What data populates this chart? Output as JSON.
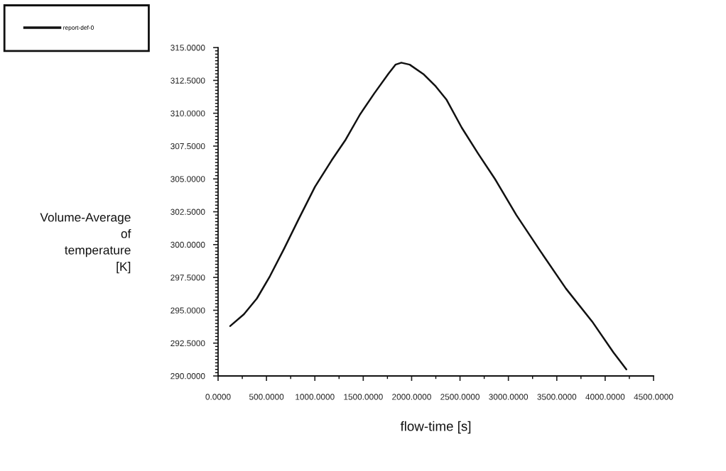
{
  "chart_data": {
    "type": "line",
    "xlabel": "flow-time [s]",
    "ylabel": "Volume-Average\nof\ntemperature\n[K]",
    "series": [
      {
        "name": "report-def-0",
        "color": "#111111",
        "x": [
          125,
          267,
          401,
          536,
          683,
          830,
          1001,
          1172,
          1319,
          1466,
          1613,
          1760,
          1833,
          1894,
          1980,
          2127,
          2249,
          2359,
          2518,
          2690,
          2861,
          3082,
          3326,
          3595,
          3865,
          4085,
          4219
        ],
        "values": [
          293.8,
          294.7,
          295.9,
          297.6,
          299.7,
          301.9,
          304.4,
          306.4,
          308.0,
          309.9,
          311.5,
          313.0,
          313.7,
          313.85,
          313.7,
          312.95,
          312.05,
          311.05,
          308.9,
          306.9,
          305.0,
          302.25,
          299.55,
          296.65,
          294.15,
          291.8,
          290.5
        ]
      }
    ],
    "xlim": [
      0,
      4500
    ],
    "ylim": [
      290,
      315
    ],
    "xticks": [
      {
        "value": 0,
        "label": "0.0000"
      },
      {
        "value": 500,
        "label": "500.0000"
      },
      {
        "value": 1000,
        "label": "1000.0000"
      },
      {
        "value": 1500,
        "label": "1500.0000"
      },
      {
        "value": 2000,
        "label": "2000.0000"
      },
      {
        "value": 2500,
        "label": "2500.0000"
      },
      {
        "value": 3000,
        "label": "3000.0000"
      },
      {
        "value": 3500,
        "label": "3500.0000"
      },
      {
        "value": 4000,
        "label": "4000.0000"
      },
      {
        "value": 4500,
        "label": "4500.0000"
      }
    ],
    "yticks": [
      {
        "value": 290,
        "label": "290.0000"
      },
      {
        "value": 292.5,
        "label": "292.5000"
      },
      {
        "value": 295,
        "label": "295.0000"
      },
      {
        "value": 297.5,
        "label": "297.5000"
      },
      {
        "value": 300,
        "label": "300.0000"
      },
      {
        "value": 302.5,
        "label": "302.5000"
      },
      {
        "value": 305,
        "label": "305.0000"
      },
      {
        "value": 307.5,
        "label": "307.5000"
      },
      {
        "value": 310,
        "label": "310.0000"
      },
      {
        "value": 312.5,
        "label": "312.5000"
      },
      {
        "value": 315,
        "label": "315.0000"
      }
    ],
    "grid": false,
    "legend": "top left",
    "marker": "none",
    "line_style": "solid"
  }
}
